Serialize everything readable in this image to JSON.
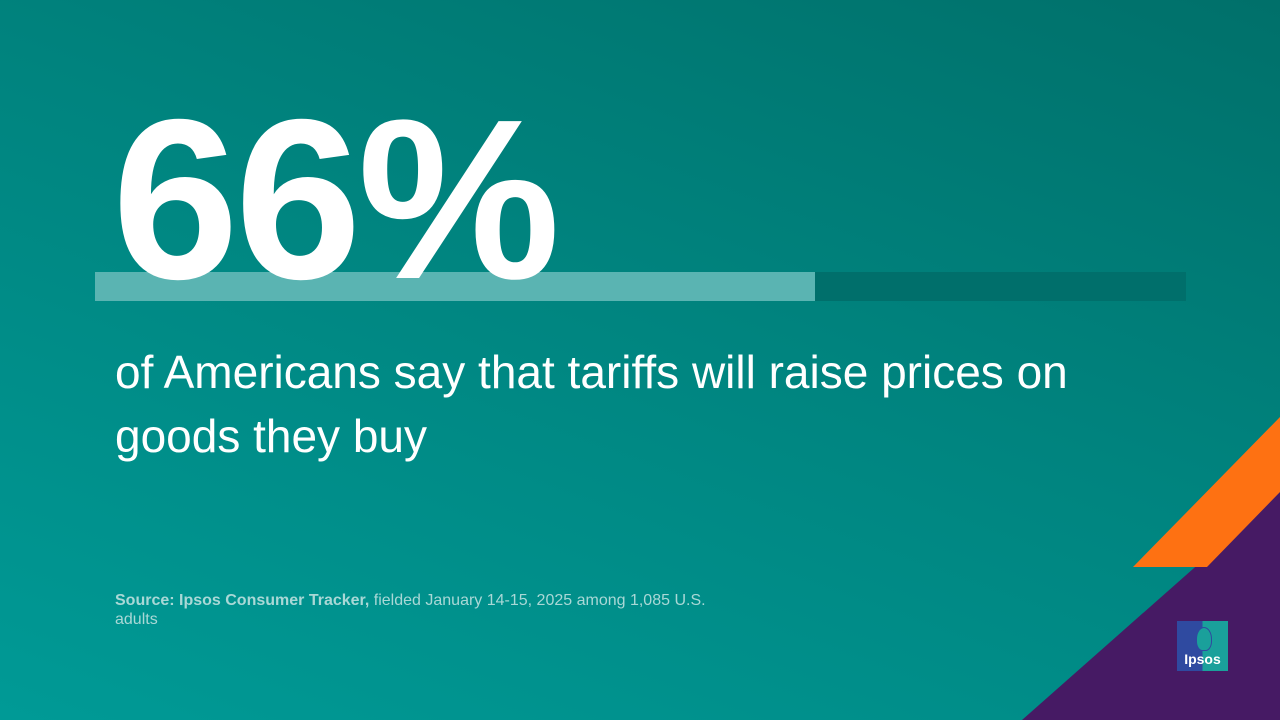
{
  "stat": {
    "value_label": "66%",
    "percent": 66
  },
  "headline": "of Americans say that tariffs will raise prices on goods they buy",
  "source": {
    "bold": "Source: Ipsos Consumer Tracker,",
    "rest": " fielded January 14-15, 2025 among 1,085 U.S. adults"
  },
  "logo": {
    "text": "Ipsos"
  },
  "colors": {
    "teal": "#00847f",
    "orange": "#fe7112",
    "purple": "#461a64",
    "bar_fill": "#5ab4b2"
  }
}
